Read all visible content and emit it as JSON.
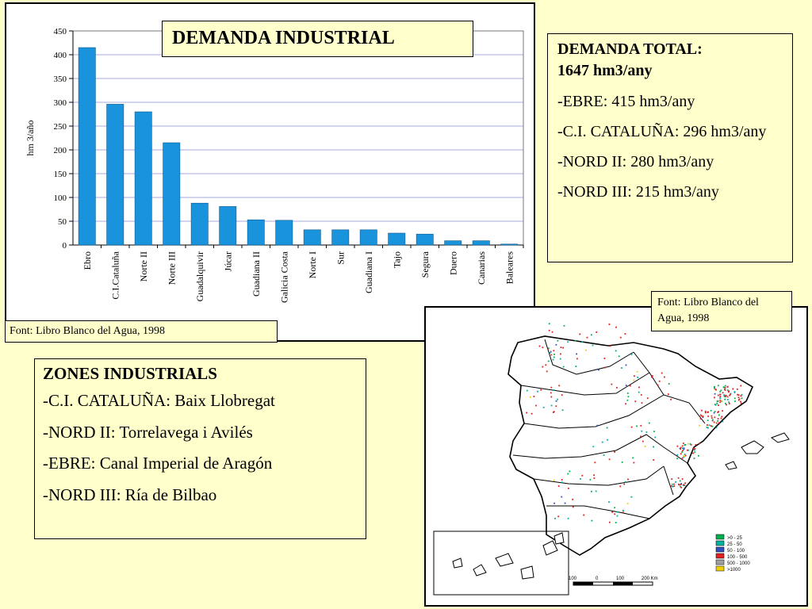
{
  "chart": {
    "title": "DEMANDA INDUSTRIAL",
    "source": "Font: Libro Blanco del Agua, 1998"
  },
  "chart_data": {
    "type": "bar",
    "title": "DEMANDA INDUSTRIAL",
    "ylabel": "hm 3/año",
    "xlabel": "",
    "categories": [
      "Ebro",
      "C.I.Cataluña",
      "Norte II",
      "Norte III",
      "Guadalquivir",
      "Júcar",
      "Guadiana II",
      "Galicia Costa",
      "Norte I",
      "Sur",
      "Guadiana I",
      "Tajo",
      "Segura",
      "Duero",
      "Canarias",
      "Baleares"
    ],
    "values": [
      415,
      296,
      280,
      215,
      88,
      81,
      53,
      52,
      32,
      32,
      32,
      25,
      23,
      9,
      9,
      2
    ],
    "ylim": [
      0,
      450
    ],
    "yticks": [
      0,
      50,
      100,
      150,
      200,
      250,
      300,
      350,
      400,
      450
    ],
    "grid": true,
    "bar_color": "#1a93dd"
  },
  "total": {
    "heading_line1": "DEMANDA TOTAL:",
    "heading_line2": "1647 hm3/any",
    "lines": [
      "-EBRE: 415 hm3/any",
      "-C.I. CATALUÑA: 296 hm3/any",
      "-NORD II: 280 hm3/any",
      "-NORD III: 215 hm3/any"
    ]
  },
  "zones": {
    "heading": "ZONES INDUSTRIALS",
    "lines": [
      "-C.I. CATALUÑA: Baix Llobregat",
      "-NORD II: Torrelavega i Avilés",
      "-EBRE: Canal Imperial de Aragón",
      "-NORD III: Ría de Bilbao"
    ]
  },
  "map": {
    "source": "Font: Libro Blanco del Agua, 1998",
    "legend": [
      {
        "label": ">0 - 25",
        "color": "#00b050"
      },
      {
        "label": "25 - 50",
        "color": "#00b0a0"
      },
      {
        "label": "50 - 100",
        "color": "#3050c0"
      },
      {
        "label": "100 - 500",
        "color": "#e02020"
      },
      {
        "label": "500 - 1000",
        "color": "#a0a0a0"
      },
      {
        "label": ">1000",
        "color": "#f0d000"
      }
    ],
    "scale_labels": [
      "100",
      "0",
      "100",
      "200 Km"
    ]
  }
}
